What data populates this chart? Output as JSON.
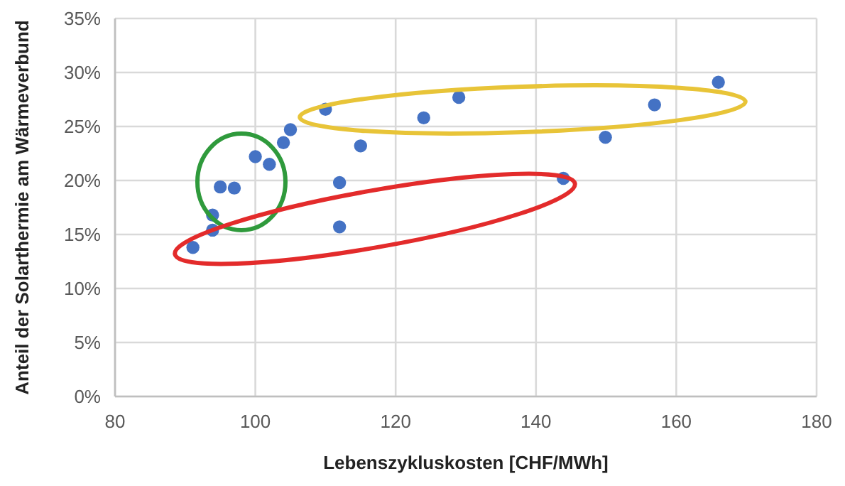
{
  "chart_data": {
    "type": "scatter",
    "xlabel": "Lebenszykluskosten [CHF/MWh]",
    "ylabel": "Anteil der Solarthermie am Wärmeverbund",
    "x": [
      91.1,
      93.9,
      93.9,
      95,
      97,
      100,
      102,
      104,
      105,
      110,
      112,
      112,
      115,
      124,
      129,
      143.9,
      149.9,
      156.9,
      166
    ],
    "series": [
      {
        "color": "#4472c4",
        "values": [
          13.8,
          16.8,
          15.4,
          19.4,
          19.3,
          22.2,
          21.5,
          23.5,
          24.7,
          26.6,
          19.8,
          15.7,
          23.2,
          25.8,
          27.7,
          20.2,
          24.0,
          27.0,
          29.1
        ]
      }
    ],
    "xlim": [
      80,
      180
    ],
    "xticks": [
      80,
      100,
      120,
      140,
      160,
      180
    ],
    "ylim": [
      0,
      35
    ],
    "yticks": [
      {
        "value": 0,
        "label": "0%"
      },
      {
        "value": 5,
        "label": "5%"
      },
      {
        "value": 10,
        "label": "10%"
      },
      {
        "value": 15,
        "label": "15%"
      },
      {
        "value": 20,
        "label": "20%"
      },
      {
        "value": 25,
        "label": "25%"
      },
      {
        "value": 30,
        "label": "30%"
      },
      {
        "value": 35,
        "label": "35%"
      }
    ],
    "grid": true,
    "marker": "circle"
  }
}
